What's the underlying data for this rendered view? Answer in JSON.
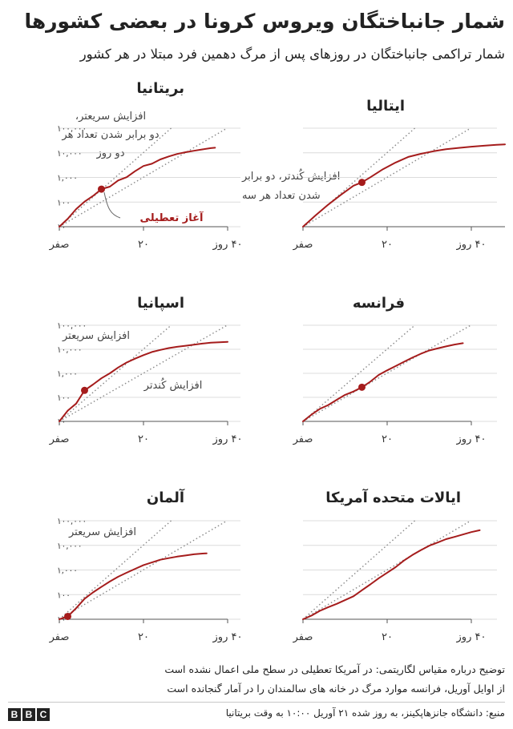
{
  "header": {
    "title": "شمار جانباختگان ویروس کرونا در بعضی کشورها",
    "subtitle": "شمار تراکمی جانباختگان در روزهای پس از مرگ دهمین فرد مبتلا در هر کشور"
  },
  "axis_labels": {
    "y_ticks": [
      "۱۰",
      "۱۰۰",
      "۱,۰۰۰",
      "۱۰,۰۰۰",
      "۱۰۰,۰۰۰"
    ],
    "x_ticks": [
      "صفر",
      "۲۰",
      "۴۰ روز"
    ]
  },
  "annotations": {
    "faster_long": "افزایش سریعتر، دو برابر شدن تعداد هر دو روز",
    "slower_long": "افزایش کُندتر، دو برابر شدن تعداد هر سه روز",
    "lockdown": "آغاز تعطیلی",
    "faster_short": "افزایش سریعتر",
    "slower_short": "افزایش کُندتر"
  },
  "notes": {
    "line1": "توضیح درباره مقیاس لگاریتمی: در آمریکا تعطیلی در سطح ملی اعمال نشده است",
    "line2": "از اوایل آوریل، فرانسه موارد مرگ در خانه های سالمندان را در آمار گنجانده است"
  },
  "source": "منبع: دانشگاه جانزهاپکینز، به روز شده ۲۱ آوریل ۱۰:۰۰ به وقت بریتانیا",
  "brand": {
    "letters": [
      "B",
      "B",
      "C"
    ]
  },
  "colors": {
    "series": "#a51c1c",
    "reference": "#888888",
    "axis": "#555555",
    "grid": "#dcdcdc"
  },
  "chart_data": [
    {
      "type": "line",
      "country": "بریتانیا",
      "x_range": [
        0,
        40
      ],
      "y_range": [
        10,
        100000
      ],
      "y_scale": "log",
      "lockdown_day": 10,
      "x": [
        0,
        2,
        4,
        6,
        8,
        10,
        12,
        14,
        16,
        18,
        20,
        22,
        24,
        26,
        28,
        30,
        32,
        34,
        36,
        37
      ],
      "y": [
        10,
        21,
        52,
        104,
        177,
        335,
        422,
        759,
        1019,
        1789,
        2921,
        3605,
        5373,
        7097,
        8958,
        10612,
        12107,
        13729,
        15464,
        16060
      ]
    },
    {
      "type": "line",
      "country": "ایتالیا",
      "x_range": [
        0,
        48
      ],
      "y_range": [
        10,
        100000
      ],
      "y_scale": "log",
      "lockdown_day": 14,
      "x": [
        0,
        3,
        6,
        9,
        12,
        14,
        16,
        19,
        22,
        25,
        28,
        31,
        34,
        37,
        40,
        43,
        46,
        48
      ],
      "y": [
        10,
        29,
        79,
        197,
        463,
        631,
        1016,
        2158,
        4032,
        6820,
        9134,
        11591,
        13915,
        15887,
        17669,
        19468,
        21067,
        22000
      ]
    },
    {
      "type": "line",
      "country": "اسپانیا",
      "x_range": [
        0,
        40
      ],
      "y_range": [
        10,
        100000
      ],
      "y_scale": "log",
      "lockdown_day": 6,
      "x": [
        0,
        2,
        4,
        6,
        8,
        10,
        12,
        14,
        16,
        18,
        20,
        22,
        24,
        26,
        28,
        30,
        32,
        34,
        36,
        38,
        40
      ],
      "y": [
        10,
        28,
        55,
        195,
        342,
        623,
        1002,
        1756,
        2808,
        4089,
        5690,
        7716,
        9387,
        11198,
        12641,
        14045,
        15447,
        17209,
        18708,
        19478,
        20453
      ]
    },
    {
      "type": "line",
      "country": "فرانسه",
      "x_range": [
        0,
        40
      ],
      "y_range": [
        10,
        100000
      ],
      "y_scale": "log",
      "lockdown_day": 14,
      "x": [
        0,
        2,
        4,
        6,
        8,
        10,
        12,
        14,
        16,
        18,
        20,
        22,
        24,
        26,
        28,
        30,
        32,
        34,
        36,
        38
      ],
      "y": [
        10,
        19,
        33,
        48,
        79,
        127,
        175,
        264,
        450,
        860,
        1331,
        1995,
        3024,
        4503,
        6507,
        8911,
        10869,
        13197,
        15729,
        17920
      ]
    },
    {
      "type": "line",
      "country": "آلمان",
      "x_range": [
        0,
        40
      ],
      "y_range": [
        10,
        100000
      ],
      "y_scale": "log",
      "lockdown_day": 2,
      "x": [
        0,
        2,
        4,
        6,
        8,
        10,
        12,
        14,
        16,
        18,
        20,
        22,
        24,
        26,
        28,
        30,
        32,
        34,
        35
      ],
      "y": [
        10,
        13,
        28,
        68,
        123,
        206,
        341,
        533,
        775,
        1107,
        1584,
        2016,
        2607,
        3022,
        3495,
        3868,
        4352,
        4642,
        4750
      ]
    },
    {
      "type": "line",
      "country": "ایالات متحده آمریکا",
      "x_range": [
        0,
        40
      ],
      "y_range": [
        10,
        100000
      ],
      "y_scale": "log",
      "lockdown_day": null,
      "x": [
        0,
        2,
        4,
        6,
        8,
        10,
        12,
        14,
        16,
        18,
        20,
        22,
        24,
        26,
        28,
        30,
        32,
        34,
        36,
        38,
        40,
        42
      ],
      "y": [
        10,
        14,
        22,
        31,
        42,
        60,
        86,
        150,
        260,
        464,
        775,
        1295,
        2415,
        4055,
        6402,
        9654,
        13026,
        17925,
        22108,
        27515,
        34617,
        41114
      ]
    }
  ]
}
